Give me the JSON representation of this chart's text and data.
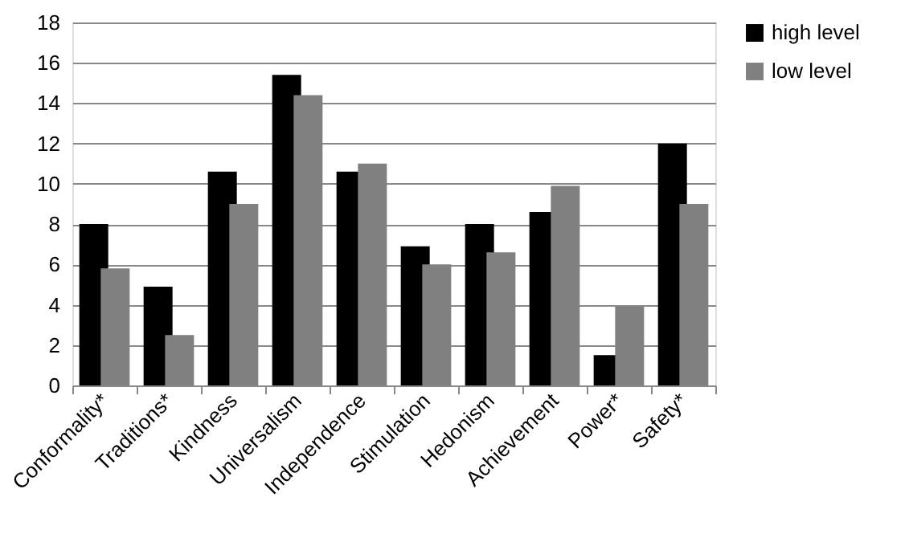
{
  "chart_data": {
    "type": "bar",
    "categories": [
      "Conformality*",
      "Traditions*",
      "Kindness",
      "Universalism",
      "Independence",
      "Stimulation",
      "Hedonism",
      "Achievement",
      "Power*",
      "Safety*"
    ],
    "series": [
      {
        "name": "high level",
        "color": "#000000",
        "values": [
          8,
          4.9,
          10.6,
          15.4,
          10.6,
          6.9,
          8,
          8.6,
          1.5,
          12
        ]
      },
      {
        "name": "low level",
        "color": "#808080",
        "values": [
          5.8,
          2.5,
          9,
          14.4,
          11,
          6,
          6.6,
          9.9,
          3.9,
          9
        ]
      }
    ],
    "ylim": [
      0,
      18
    ],
    "yticks": [
      0,
      2,
      4,
      6,
      8,
      10,
      12,
      14,
      16,
      18
    ],
    "grid": "y",
    "legend": "right"
  }
}
